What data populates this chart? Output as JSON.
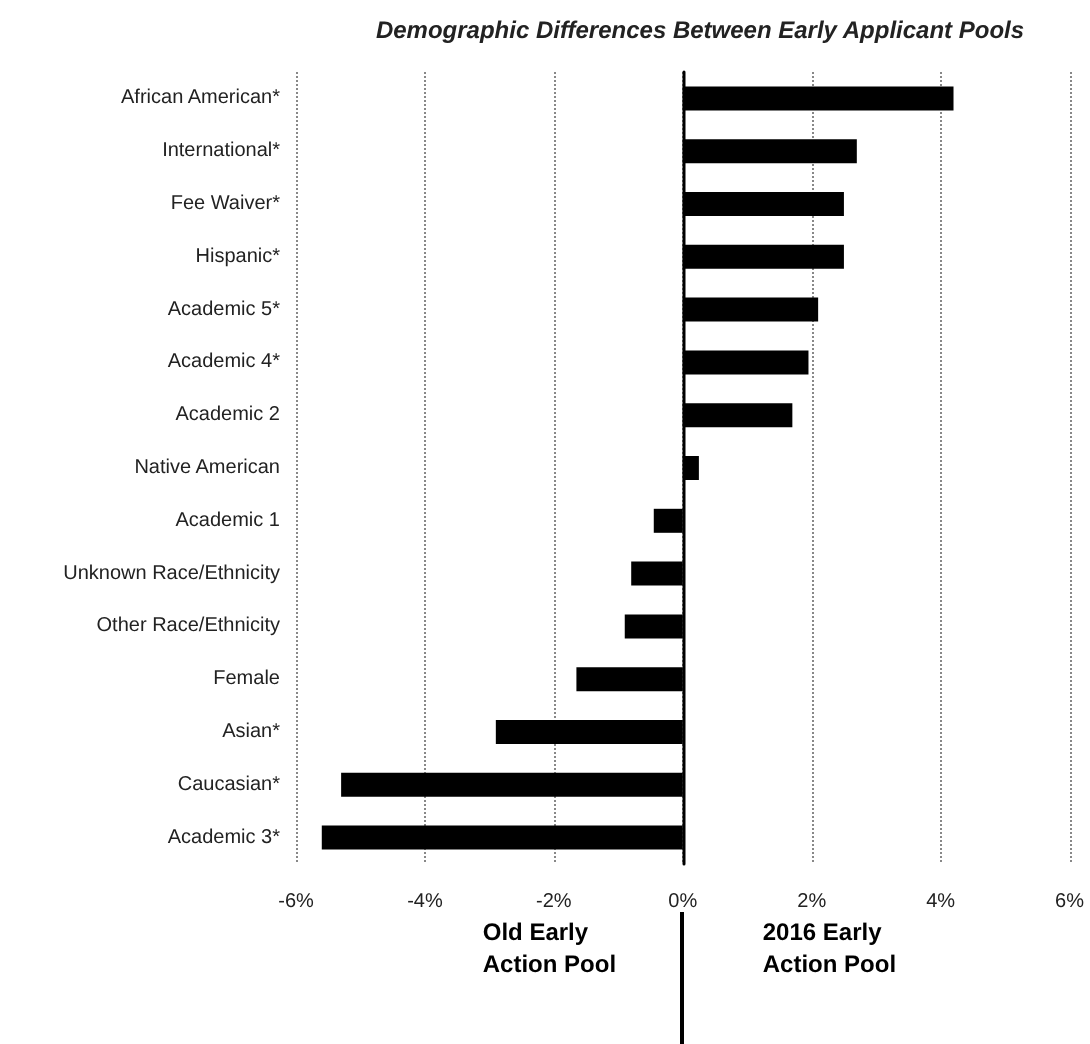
{
  "chart_data": {
    "type": "bar",
    "orientation": "horizontal",
    "title": "Demographic Differences Between Early Applicant Pools",
    "categories": [
      "African American*",
      "International*",
      "Fee Waiver*",
      "Hispanic*",
      "Academic 5*",
      "Academic 4*",
      "Academic 2",
      "Native American",
      "Academic 1",
      "Unknown Race/Ethnicity",
      "Other Race/Ethnicity",
      "Female",
      "Asian*",
      "Caucasian*",
      "Academic 3*"
    ],
    "values": [
      4.2,
      2.7,
      2.5,
      2.5,
      2.1,
      1.95,
      1.7,
      0.25,
      -0.45,
      -0.8,
      -0.9,
      -1.65,
      -2.9,
      -5.3,
      -5.6
    ],
    "color": "#000000",
    "xlim": [
      -6,
      6
    ],
    "xticks": [
      {
        "value": -6,
        "label": "-6%"
      },
      {
        "value": -4,
        "label": "-4%"
      },
      {
        "value": -2,
        "label": "-2%"
      },
      {
        "value": 0,
        "label": "0%"
      },
      {
        "value": 2,
        "label": "2%"
      },
      {
        "value": 4,
        "label": "4%"
      },
      {
        "value": 6,
        "label": "6%"
      }
    ],
    "grid": "x",
    "annotations": [
      "Old Early Action Pool",
      "2016 Early Action Pool"
    ]
  }
}
